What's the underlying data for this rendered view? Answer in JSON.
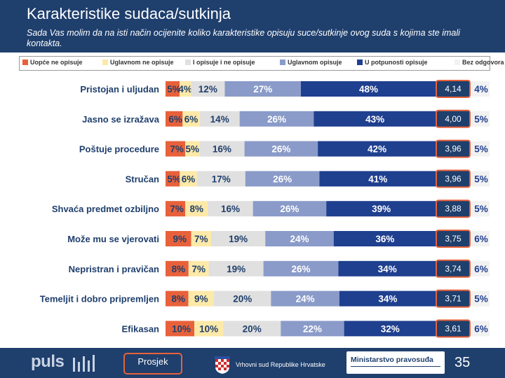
{
  "header": {
    "title": "Karakteristike sudaca/sutkinja",
    "subtitle": "Sada Vas molim da na isti način ocijenite koliko karakteristike opisuju suce/sutkinje ovog suda s kojima ste imali kontakta."
  },
  "colors": {
    "header_bg": "#1f3f6d",
    "s1": "#e8613a",
    "s2": "#fde9a8",
    "s3": "#e0e0e0",
    "s4": "#8a9bc9",
    "s5": "#1f3f8f",
    "s6": "#f2f2f2",
    "avg_box": "#1f3f6d",
    "avg_border": "#e8613a"
  },
  "chart_data": {
    "type": "bar",
    "orientation": "horizontal",
    "stacked": true,
    "title": "Karakteristike sudaca/sutkinja",
    "categories": [
      "Pristojan i uljudan",
      "Jasno se izražava",
      "Poštuje procedure",
      "Stručan",
      "Shvaća predmet ozbiljno",
      "Može mu se vjerovati",
      "Nepristran i pravičan",
      "Temeljit i dobro pripremljen",
      "Efikasan"
    ],
    "series": [
      {
        "name": "Uopće ne opisuje",
        "values": [
          5,
          6,
          7,
          5,
          7,
          9,
          8,
          8,
          10
        ],
        "labels": [
          "5%",
          "6%",
          "7%",
          "5%",
          "7%",
          "9%",
          "8%",
          "8%",
          "10%"
        ]
      },
      {
        "name": "Uglavnom ne opisuje",
        "values": [
          4,
          6,
          5,
          6,
          8,
          7,
          7,
          9,
          10
        ],
        "labels": [
          "4%",
          "6%",
          "5%",
          "6%",
          "8%",
          "7%",
          "7%",
          "9%",
          "10%"
        ]
      },
      {
        "name": "I opisuje i ne opisuje",
        "values": [
          12,
          14,
          16,
          17,
          16,
          19,
          19,
          20,
          20
        ],
        "labels": [
          "12%",
          "14%",
          "16%",
          "17%",
          "16%",
          "19%",
          "19%",
          "20%",
          "20%"
        ]
      },
      {
        "name": "Uglavnom opisuje",
        "values": [
          27,
          26,
          26,
          26,
          26,
          24,
          26,
          24,
          22
        ],
        "labels": [
          "27%",
          "26%",
          "26%",
          "26%",
          "26%",
          "24%",
          "26%",
          "24%",
          "22%"
        ]
      },
      {
        "name": "U potpunosti opisuje",
        "values": [
          48,
          43,
          42,
          41,
          39,
          36,
          34,
          34,
          32
        ],
        "labels": [
          "48%",
          "43%",
          "42%",
          "41%",
          "39%",
          "36%",
          "34%",
          "34%",
          "32%"
        ]
      },
      {
        "name": "Bez odgovora",
        "values": [
          4,
          5,
          5,
          5,
          5,
          6,
          6,
          5,
          6
        ],
        "labels": [
          "4%",
          "5%",
          "5%",
          "5%",
          "5%",
          "6%",
          "6%",
          "5%",
          "6%"
        ]
      }
    ],
    "averages": [
      "4,14",
      "4,00",
      "3,96",
      "3,96",
      "3,88",
      "3,75",
      "3,74",
      "3,71",
      "3,61"
    ],
    "xlim": [
      0,
      100
    ],
    "legend": "top"
  },
  "footer": {
    "logo_text": "puls",
    "button_label": "Prosjek",
    "court_name": "Vrhovni sud Republike Hrvatske",
    "ministry_name": "Ministarstvo pravosuđa",
    "page_number": "35"
  }
}
